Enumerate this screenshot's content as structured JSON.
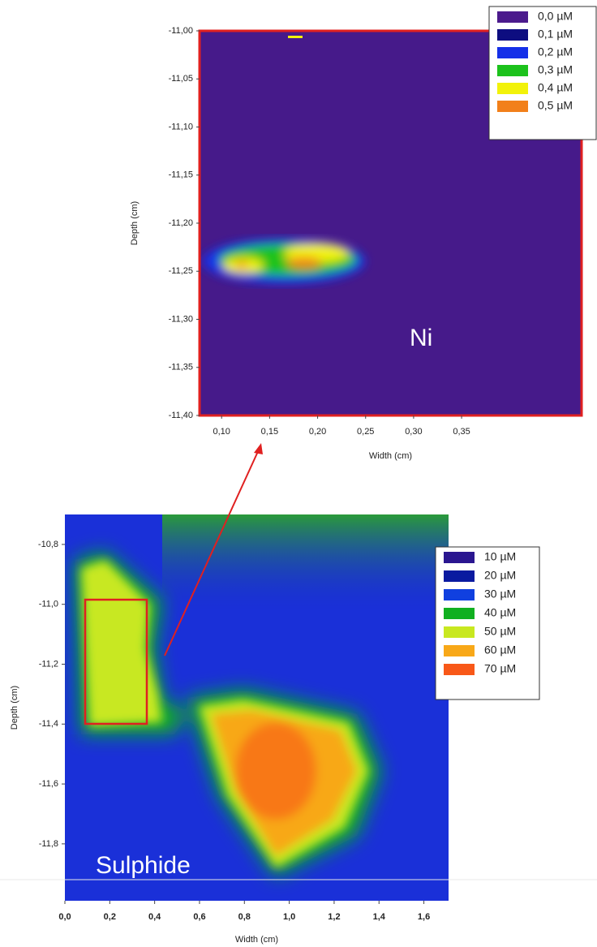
{
  "chart_data": [
    {
      "type": "heatmap",
      "x_label": "Width (cm)",
      "y_label": "Depth (cm)",
      "annotations": [
        "Ni"
      ],
      "xlim": [
        0.077,
        0.475
      ],
      "ylim": [
        -11.4,
        -11.0
      ],
      "xticks": [
        {
          "value": 0.1,
          "label": "0,10"
        },
        {
          "value": 0.15,
          "label": "0,15"
        },
        {
          "value": 0.2,
          "label": "0,20"
        },
        {
          "value": 0.25,
          "label": "0,25"
        },
        {
          "value": 0.3,
          "label": "0,30"
        },
        {
          "value": 0.35,
          "label": "0,35"
        }
      ],
      "yticks": [
        {
          "value": -11.0,
          "label": "-11,00"
        },
        {
          "value": -11.05,
          "label": "-11,05"
        },
        {
          "value": -11.1,
          "label": "-11,10"
        },
        {
          "value": -11.15,
          "label": "-11,15"
        },
        {
          "value": -11.2,
          "label": "-11,20"
        },
        {
          "value": -11.25,
          "label": "-11,25"
        },
        {
          "value": -11.3,
          "label": "-11,30"
        },
        {
          "value": -11.35,
          "label": "-11,35"
        },
        {
          "value": -11.4,
          "label": "-11,40"
        }
      ],
      "series": [
        {
          "name": "0,0 µM",
          "color": "#4b1a8c"
        },
        {
          "name": "0,1 µM",
          "color": "#0d0d80"
        },
        {
          "name": "0,2 µM",
          "color": "#1530e8"
        },
        {
          "name": "0,3 µM",
          "color": "#1cc21c"
        },
        {
          "name": "0,4 µM",
          "color": "#f2f20a"
        },
        {
          "name": "0,5 µM",
          "color": "#f2801a"
        }
      ]
    },
    {
      "type": "heatmap",
      "x_label": "Width (cm)",
      "y_label": "Depth (cm)",
      "annotations": [
        "Sulphide"
      ],
      "xlim": [
        0,
        1.71
      ],
      "ylim": [
        -11.99,
        -10.7
      ],
      "xticks": [
        {
          "value": 0.0,
          "label": "0,0"
        },
        {
          "value": 0.2,
          "label": "0,2"
        },
        {
          "value": 0.4,
          "label": "0,4"
        },
        {
          "value": 0.6,
          "label": "0,6"
        },
        {
          "value": 0.8,
          "label": "0,8"
        },
        {
          "value": 1.0,
          "label": "1,0"
        },
        {
          "value": 1.2,
          "label": "1,2"
        },
        {
          "value": 1.4,
          "label": "1,4"
        },
        {
          "value": 1.6,
          "label": "1,6"
        }
      ],
      "yticks": [
        {
          "value": -10.8,
          "label": "-10,8"
        },
        {
          "value": -11.0,
          "label": "-11,0"
        },
        {
          "value": -11.2,
          "label": "-11,2"
        },
        {
          "value": -11.4,
          "label": "-11,4"
        },
        {
          "value": -11.6,
          "label": "-11,6"
        },
        {
          "value": -11.8,
          "label": "-11,8"
        }
      ],
      "series": [
        {
          "name": "10 µM",
          "color": "#2a1690"
        },
        {
          "name": "20 µM",
          "color": "#0a1aa0"
        },
        {
          "name": "30 µM",
          "color": "#1040e0"
        },
        {
          "name": "40 µM",
          "color": "#10b020"
        },
        {
          "name": "50 µM",
          "color": "#c8e820"
        },
        {
          "name": "60 µM",
          "color": "#f8a818"
        },
        {
          "name": "70 µM",
          "color": "#f85818"
        }
      ]
    }
  ]
}
